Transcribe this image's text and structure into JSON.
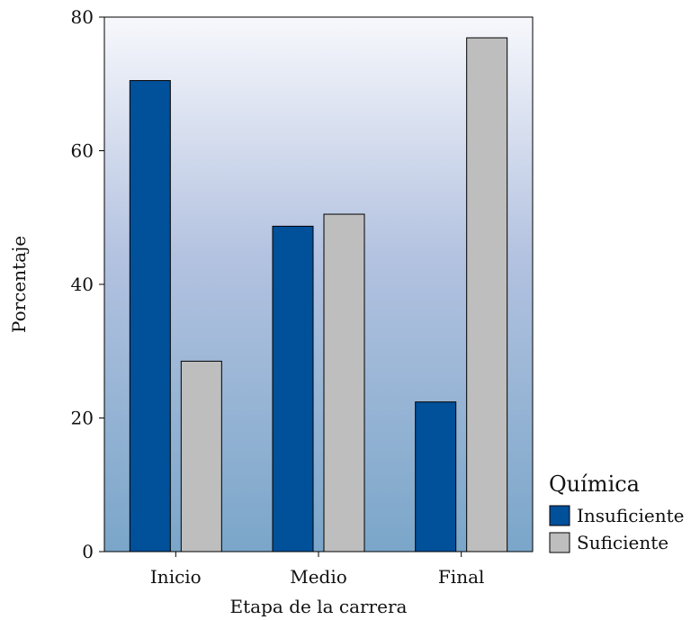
{
  "chart_data": {
    "type": "bar",
    "categories": [
      "Inicio",
      "Medio",
      "Final"
    ],
    "series": [
      {
        "name": "Insuficiente",
        "values": [
          70.5,
          48.7,
          22.4
        ],
        "color": "#00509a"
      },
      {
        "name": "Suficiente",
        "values": [
          28.5,
          50.5,
          76.9
        ],
        "color": "#bebebe"
      }
    ],
    "title": "",
    "xlabel": "Etapa de la carrera",
    "ylabel": "Porcentaje",
    "ylim": [
      0,
      80
    ],
    "yticks": [
      0,
      20,
      40,
      60,
      80
    ],
    "grid": false,
    "legend": {
      "title": "Química",
      "position": "right-bottom"
    },
    "background_gradient": {
      "top": "#f7f8fc",
      "middle": "#b3c2e0",
      "bottom": "#7aa6c9"
    }
  }
}
